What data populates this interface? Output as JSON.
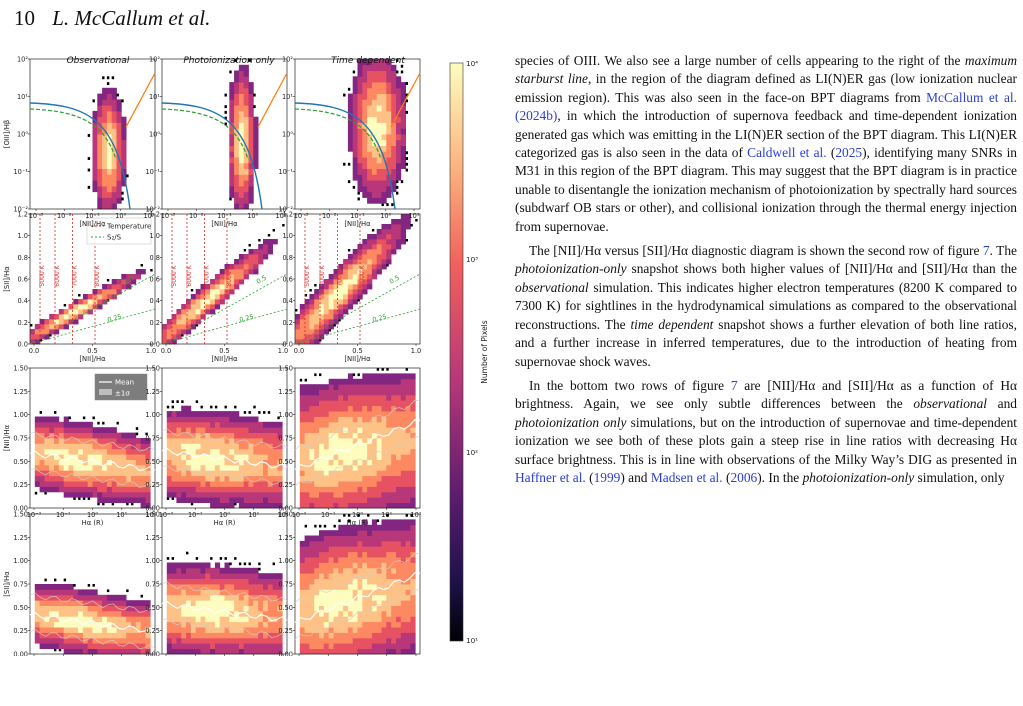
{
  "header": {
    "page_number": "10",
    "authors": "L. McCallum et al."
  },
  "figure": {
    "colorbar": {
      "label": "Number of Pixels",
      "ticks": [
        "10⁴",
        "10³",
        "10²",
        "10¹"
      ]
    },
    "legend_row2": [
      "Temperature",
      "S₂/S"
    ],
    "legend_row3": [
      "Mean",
      "±1σ"
    ],
    "tick_labels": {
      "log_x": [
        "10⁻³",
        "10⁻²",
        "10⁻¹",
        "10⁰",
        "10¹"
      ],
      "log_y": [
        "10⁻²",
        "10⁻¹",
        "10⁰",
        "10¹",
        "10²"
      ],
      "lin_x": [
        "0.0",
        "0.5",
        "1.0"
      ],
      "lin_y": [
        "0.0",
        "0.2",
        "0.4",
        "0.6",
        "0.8",
        "1.0",
        "1.2"
      ],
      "y_rows34": [
        "0.00",
        "0.25",
        "0.50",
        "0.75",
        "1.00",
        "1.25",
        "1.50"
      ],
      "halpha_x": [
        "10⁻²",
        "10⁻¹",
        "10⁰",
        "10¹",
        "10²"
      ]
    },
    "temp_labels": [
      "5000 K",
      "6000 K",
      "7000 K",
      "8000 K"
    ],
    "slope_labels": [
      "0.25",
      "0.5"
    ],
    "chart_data": [
      {
        "type": "heatmap",
        "panel": "Observational",
        "row": 1,
        "xlabel": "[NII]/Hα",
        "ylabel": "[OIII]/Hβ",
        "xscale": "log",
        "yscale": "log",
        "xlim": [
          0.001,
          10
        ],
        "ylim": [
          0.01,
          100
        ]
      },
      {
        "type": "heatmap",
        "panel": "Photoionization only",
        "row": 1,
        "xlabel": "[NII]/Hα",
        "xscale": "log",
        "yscale": "log",
        "xlim": [
          0.001,
          10
        ],
        "ylim": [
          0.01,
          100
        ]
      },
      {
        "type": "heatmap",
        "panel": "Time dependent",
        "row": 1,
        "xlabel": "[NII]/Hα",
        "xscale": "log",
        "yscale": "log",
        "xlim": [
          0.001,
          10
        ],
        "ylim": [
          0.01,
          100
        ]
      },
      {
        "type": "heatmap",
        "row": 2,
        "xlabel": "[NII]/Hα",
        "ylabel": "[SII]/Hα",
        "xlim": [
          0,
          1.3
        ],
        "ylim": [
          0,
          1.25
        ]
      },
      {
        "type": "heatmap",
        "row": 3,
        "xlabel": "Hα (R)",
        "ylabel": "[NII]/Hα",
        "xscale": "log",
        "xlim": [
          0.01,
          100
        ],
        "ylim": [
          0,
          1.5
        ]
      },
      {
        "type": "heatmap",
        "row": 4,
        "xlabel": "Hα (R)",
        "ylabel": "[SII]/Hα",
        "xscale": "log",
        "xlim": [
          0.01,
          100
        ],
        "ylim": [
          0,
          1.5
        ]
      }
    ]
  },
  "text": {
    "p1": {
      "a": "species of O",
      "a_sc": "III",
      "b": ". We also see a large number of cells appearing to the right of the ",
      "b_it": "maximum starburst line",
      "c": ", in the region of the diagram defined as LI(N)ER gas (low ionization nuclear emission region). This was also seen in the face-on BPT diagrams from ",
      "link1": "McCallum et al. (2024b)",
      "d": ", in which the introduction of supernova feedback and time-dependent ionization generated gas which was emitting in the LI(N)ER section of the BPT diagram. This LI(N)ER categorized gas is also seen in the data of ",
      "link2": "Caldwell et al.",
      "e": " (",
      "link2_year": "2025",
      "f": "), identifying many SNRs in M31 in this region of the BPT diagram. This may suggest that the BPT diagram is in practice unable to disentangle the ionization mechanism of photoionization by spectrally hard sources (subdwarf OB stars or other), and collisional ionization through the thermal energy injection from supernovae."
    },
    "p2": {
      "a": "The [N",
      "a_sc": "II",
      "b": "]/Hα versus [S",
      "b_sc": "II",
      "c": "]/Hα diagnostic diagram is shown the second row of figure ",
      "fig": "7",
      "d": ". The ",
      "d_it": "photoionization-only",
      "e": " snapshot shows both higher values of [N",
      "e_sc": "II",
      "f": "]/Hα and [S",
      "f_sc": "II",
      "g": "]/Hα than the ",
      "g_it": "observational",
      "h": " simulation. This indicates higher electron temperatures (8200 K compared to 7300 K) for sightlines in the hydrodynamical simulations as compared to the observational reconstructions. The ",
      "h_it": "time dependent",
      "i": " snapshot shows a further elevation of both line ratios, and a further increase in inferred temperatures, due to the introduction of heating from supernovae shock waves."
    },
    "p3": {
      "a": "In the bottom two rows of figure ",
      "fig": "7",
      "b": " are [N",
      "b_sc": "II",
      "c": "]/Hα and [S",
      "c_sc": "II",
      "d": "]/Hα as a function of Hα brightness. Again, we see only subtle differences between the ",
      "d_it": "observational",
      "e": " and ",
      "e_it": "photoionization only",
      "f": " simulations, but on the introduction of supernovae and time-dependent ionization we see both of these plots gain a steep rise in line ratios with decreasing Hα surface brightness. This is in line with observations of the Milky Way’s DIG as presented in ",
      "link3": "Haffner et al.",
      "g": " (",
      "link3_year": "1999",
      "h": ") and ",
      "link4": "Madsen et al.",
      "i": " (",
      "link4_year": "2006",
      "j": "). In the ",
      "j_it": "photoionization-only",
      "k": " simulation, only"
    }
  }
}
